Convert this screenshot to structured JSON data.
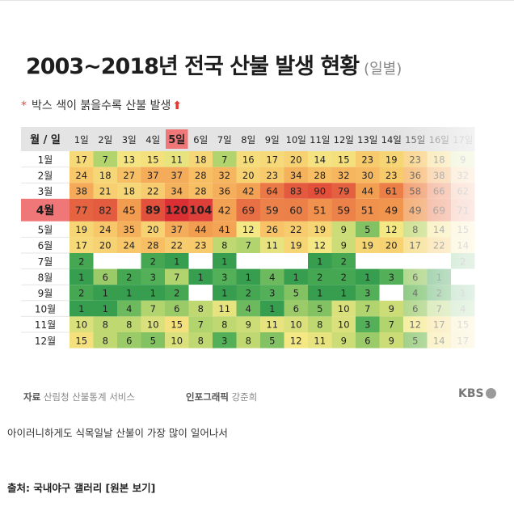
{
  "title": "2003~2018년 전국 산불 발생 현황",
  "title_suffix": "(일별)",
  "subtitle": "박스 색이 붉을수록 산불 발생",
  "subtitle_star": "*",
  "subtitle_arrow": "⬆",
  "footer": {
    "source_label": "자료",
    "source_text": "산림청 산불통계 서비스",
    "graphic_label": "인포그래픽",
    "graphic_author": "강준희",
    "logo_text": "KBS"
  },
  "caption": "아이러니하게도 식목일날 산불이 가장 많이 일어나서",
  "post_source": "출처: 국내야구 갤러리 [원본 보기]",
  "chart_data": {
    "type": "heatmap",
    "corner_label": "월 / 일",
    "x_categories": [
      "1일",
      "2일",
      "3일",
      "4일",
      "5일",
      "6일",
      "7일",
      "8일",
      "9일",
      "10일",
      "11일",
      "12일",
      "13일",
      "14일",
      "15일",
      "16일",
      "17일"
    ],
    "y_categories": [
      "1월",
      "2월",
      "3월",
      "4월",
      "5월",
      "6월",
      "7월",
      "8월",
      "9월",
      "10월",
      "11월",
      "12월"
    ],
    "highlight": {
      "row": "4월",
      "column": "5일",
      "bold_values": [
        89,
        120,
        104
      ]
    },
    "values": [
      [
        17,
        7,
        13,
        15,
        11,
        18,
        7,
        16,
        17,
        20,
        14,
        15,
        23,
        19,
        23,
        18,
        9
      ],
      [
        24,
        18,
        27,
        37,
        37,
        28,
        32,
        20,
        23,
        34,
        28,
        32,
        30,
        23,
        36,
        38,
        32
      ],
      [
        38,
        21,
        18,
        22,
        34,
        28,
        36,
        42,
        64,
        83,
        90,
        79,
        44,
        61,
        58,
        66,
        62
      ],
      [
        77,
        82,
        45,
        89,
        120,
        104,
        42,
        69,
        59,
        60,
        51,
        59,
        51,
        49,
        49,
        69,
        71
      ],
      [
        19,
        24,
        35,
        20,
        37,
        44,
        41,
        12,
        26,
        22,
        19,
        9,
        5,
        12,
        8,
        14,
        15
      ],
      [
        17,
        20,
        24,
        28,
        22,
        23,
        8,
        7,
        11,
        19,
        12,
        9,
        19,
        20,
        17,
        22,
        14
      ],
      [
        2,
        null,
        null,
        2,
        1,
        null,
        1,
        null,
        null,
        null,
        1,
        2,
        null,
        null,
        null,
        null,
        2
      ],
      [
        1,
        6,
        2,
        3,
        7,
        1,
        3,
        1,
        4,
        1,
        2,
        2,
        1,
        3,
        6,
        1,
        null
      ],
      [
        2,
        1,
        1,
        1,
        2,
        null,
        1,
        2,
        3,
        5,
        1,
        1,
        3,
        null,
        4,
        2,
        1
      ],
      [
        1,
        1,
        4,
        7,
        6,
        8,
        11,
        4,
        1,
        6,
        5,
        10,
        7,
        9,
        6,
        7,
        4
      ],
      [
        10,
        8,
        8,
        10,
        15,
        7,
        8,
        9,
        11,
        10,
        8,
        10,
        3,
        7,
        12,
        17,
        15
      ],
      [
        15,
        8,
        6,
        5,
        10,
        8,
        3,
        8,
        5,
        12,
        11,
        9,
        6,
        9,
        5,
        14,
        17
      ]
    ]
  }
}
